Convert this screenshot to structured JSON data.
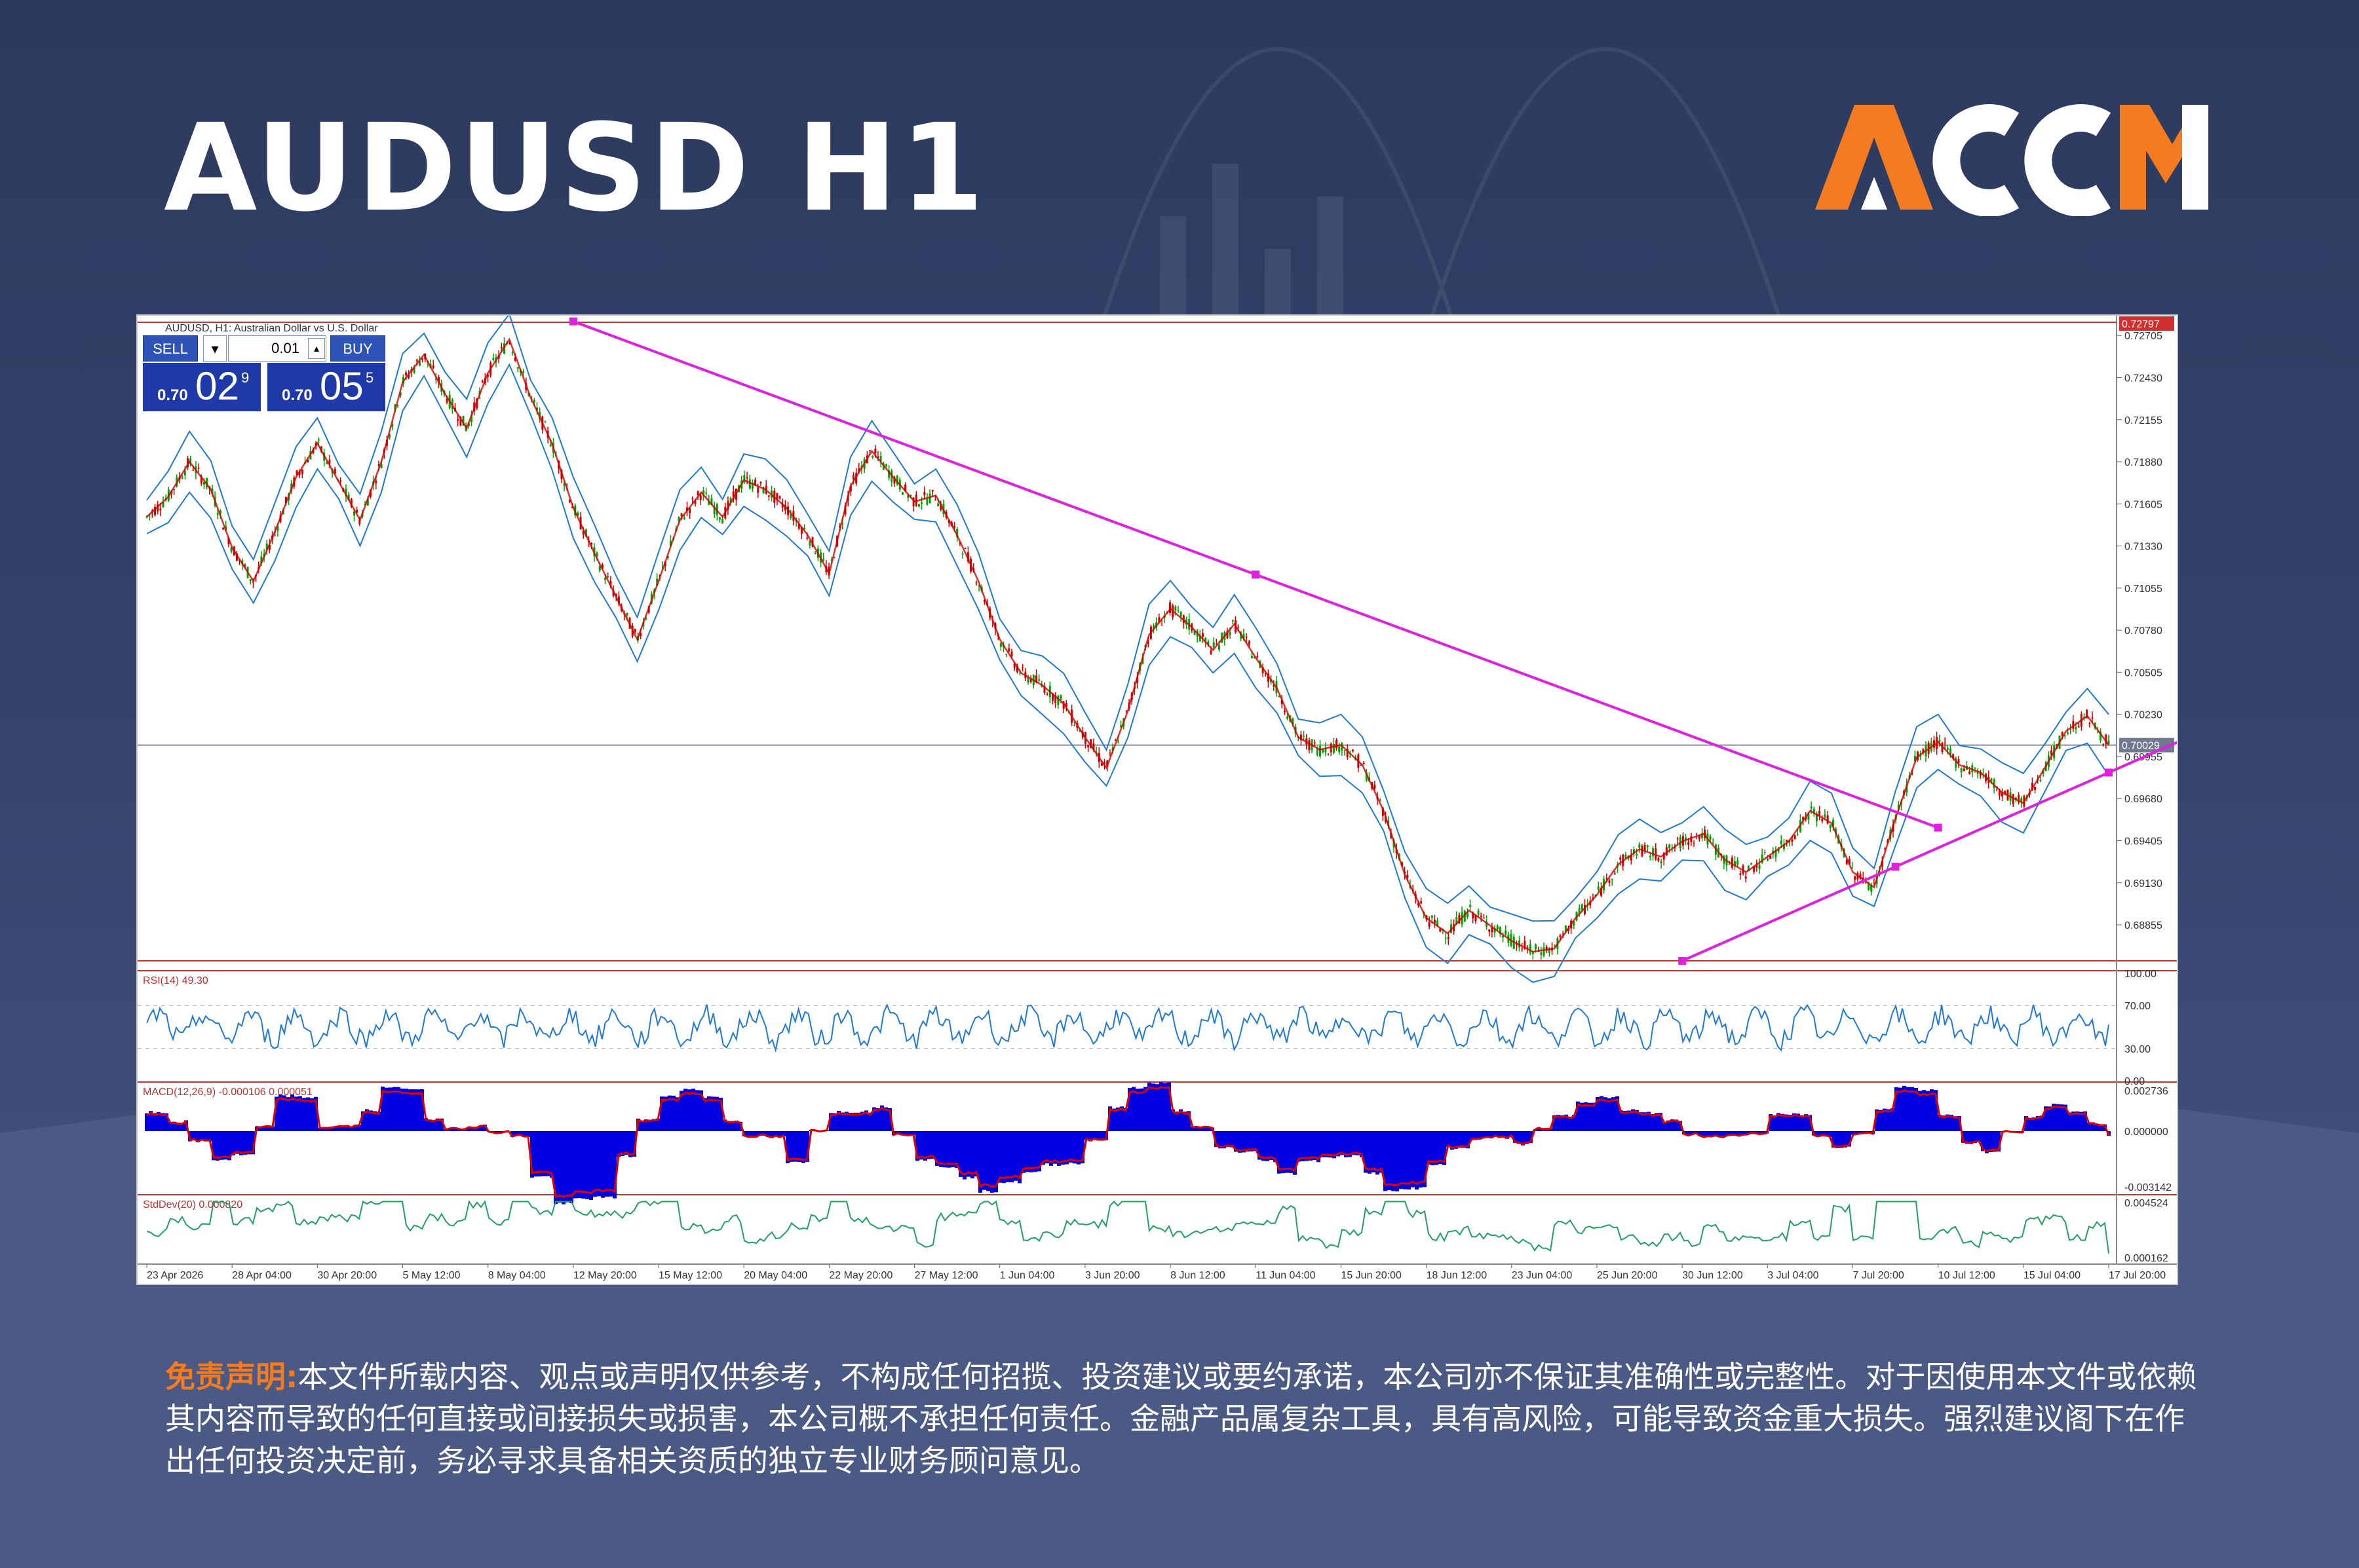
{
  "title": "AUDUSD H1",
  "logo_text": "ACCM",
  "colors": {
    "brand_orange": "#f47b20",
    "bull": "#00a000",
    "bear": "#d00000",
    "bands": "#1e78d8",
    "trendline": "#e020e0",
    "rsi": "#1e78d8",
    "macd_hist": "#0000e0",
    "macd_signal": "#e00000",
    "stddev": "#20a060"
  },
  "trade_panel": {
    "sell_label": "SELL",
    "buy_label": "BUY",
    "lot": "0.01",
    "bid_small": "0.70",
    "bid_big": "02",
    "bid_sup": "9",
    "ask_small": "0.70",
    "ask_big": "05",
    "ask_sup": "5"
  },
  "chart_data": {
    "type": "line",
    "symbol_header": "AUDUSD, H1:  Australian Dollar vs U.S. Dollar",
    "price_axis_ticks": [
      "0.72705",
      "0.72430",
      "0.72155",
      "0.71880",
      "0.71605",
      "0.71330",
      "0.71055",
      "0.70780",
      "0.70505",
      "0.70230",
      "0.69955",
      "0.69680",
      "0.69405",
      "0.69130",
      "0.68855"
    ],
    "ylim": [
      0.6862,
      0.728
    ],
    "price_labels": {
      "high_line": "0.72797",
      "current": "0.70029"
    },
    "x_ticks": [
      "23 Apr 2026",
      "28 Apr 04:00",
      "30 Apr 20:00",
      "5 May 12:00",
      "8 May 04:00",
      "12 May 20:00",
      "15 May 12:00",
      "20 May 04:00",
      "22 May 20:00",
      "27 May 12:00",
      "1 Jun 04:00",
      "3 Jun 20:00",
      "8 Jun 12:00",
      "11 Jun 04:00",
      "15 Jun 20:00",
      "18 Jun 12:00",
      "23 Jun 04:00",
      "25 Jun 20:00",
      "30 Jun 12:00",
      "3 Jul 04:00",
      "7 Jul 20:00",
      "10 Jul 12:00",
      "15 Jul 04:00",
      "17 Jul 20:00"
    ],
    "series": [
      {
        "values": [
          0.7152,
          0.7165,
          0.7188,
          0.717,
          0.7132,
          0.711,
          0.7142,
          0.7178,
          0.72,
          0.7175,
          0.715,
          0.7188,
          0.724,
          0.7258,
          0.7232,
          0.721,
          0.7246,
          0.7268,
          0.723,
          0.72,
          0.7158,
          0.7128,
          0.71,
          0.7072,
          0.711,
          0.715,
          0.7168,
          0.7152,
          0.7176,
          0.717,
          0.7158,
          0.714,
          0.7115,
          0.7172,
          0.7195,
          0.7178,
          0.7162,
          0.7166,
          0.714,
          0.711,
          0.7072,
          0.705,
          0.7042,
          0.703,
          0.7008,
          0.6988,
          0.7025,
          0.7075,
          0.7092,
          0.708,
          0.7065,
          0.7082,
          0.706,
          0.704,
          0.7008,
          0.7,
          0.7003,
          0.699,
          0.696,
          0.6918,
          0.689,
          0.688,
          0.6895,
          0.6885,
          0.6875,
          0.6868,
          0.687,
          0.689,
          0.6905,
          0.6925,
          0.6935,
          0.693,
          0.694,
          0.6945,
          0.6928,
          0.692,
          0.693,
          0.694,
          0.696,
          0.6952,
          0.692,
          0.691,
          0.6955,
          0.6995,
          0.7005,
          0.699,
          0.6985,
          0.6972,
          0.6965,
          0.6988,
          0.7012,
          0.7022,
          0.7003
        ]
      }
    ],
    "trendlines": [
      {
        "from": [
          "12 May 20:00",
          0.72797
        ],
        "to": [
          "10 Jul 12:00",
          0.6949
        ]
      },
      {
        "from": [
          "30 Jun 12:00",
          0.6862
        ],
        "to": [
          "17 Jul 20:00",
          0.6985
        ]
      }
    ],
    "indicators": [
      {
        "label": "RSI(14) 49.30",
        "ticks": [
          "100.00",
          "70.00",
          "30.00",
          "0.00"
        ],
        "levels": [
          70,
          30
        ]
      },
      {
        "label": "MACD(12,26,9) -0.000106 0.000051",
        "ticks": [
          "0.002736",
          "0.000000",
          "-0.003142"
        ]
      },
      {
        "label": "StdDev(20) 0.000820",
        "ticks": [
          "0.004524",
          "0.000162"
        ]
      }
    ]
  },
  "disclaimer": {
    "label": "免责声明:",
    "text": "本文件所载内容、观点或声明仅供参考，不构成任何招揽、投资建议或要约承诺，本公司亦不保证其准确性或完整性。对于因使用本文件或依赖其内容而导致的任何直接或间接损失或损害，本公司概不承担任何责任。金融产品属复杂工具，具有高风险，可能导致资金重大损失。强烈建议阁下在作出任何投资决定前，务必寻求具备相关资质的独立专业财务顾问意见。"
  }
}
